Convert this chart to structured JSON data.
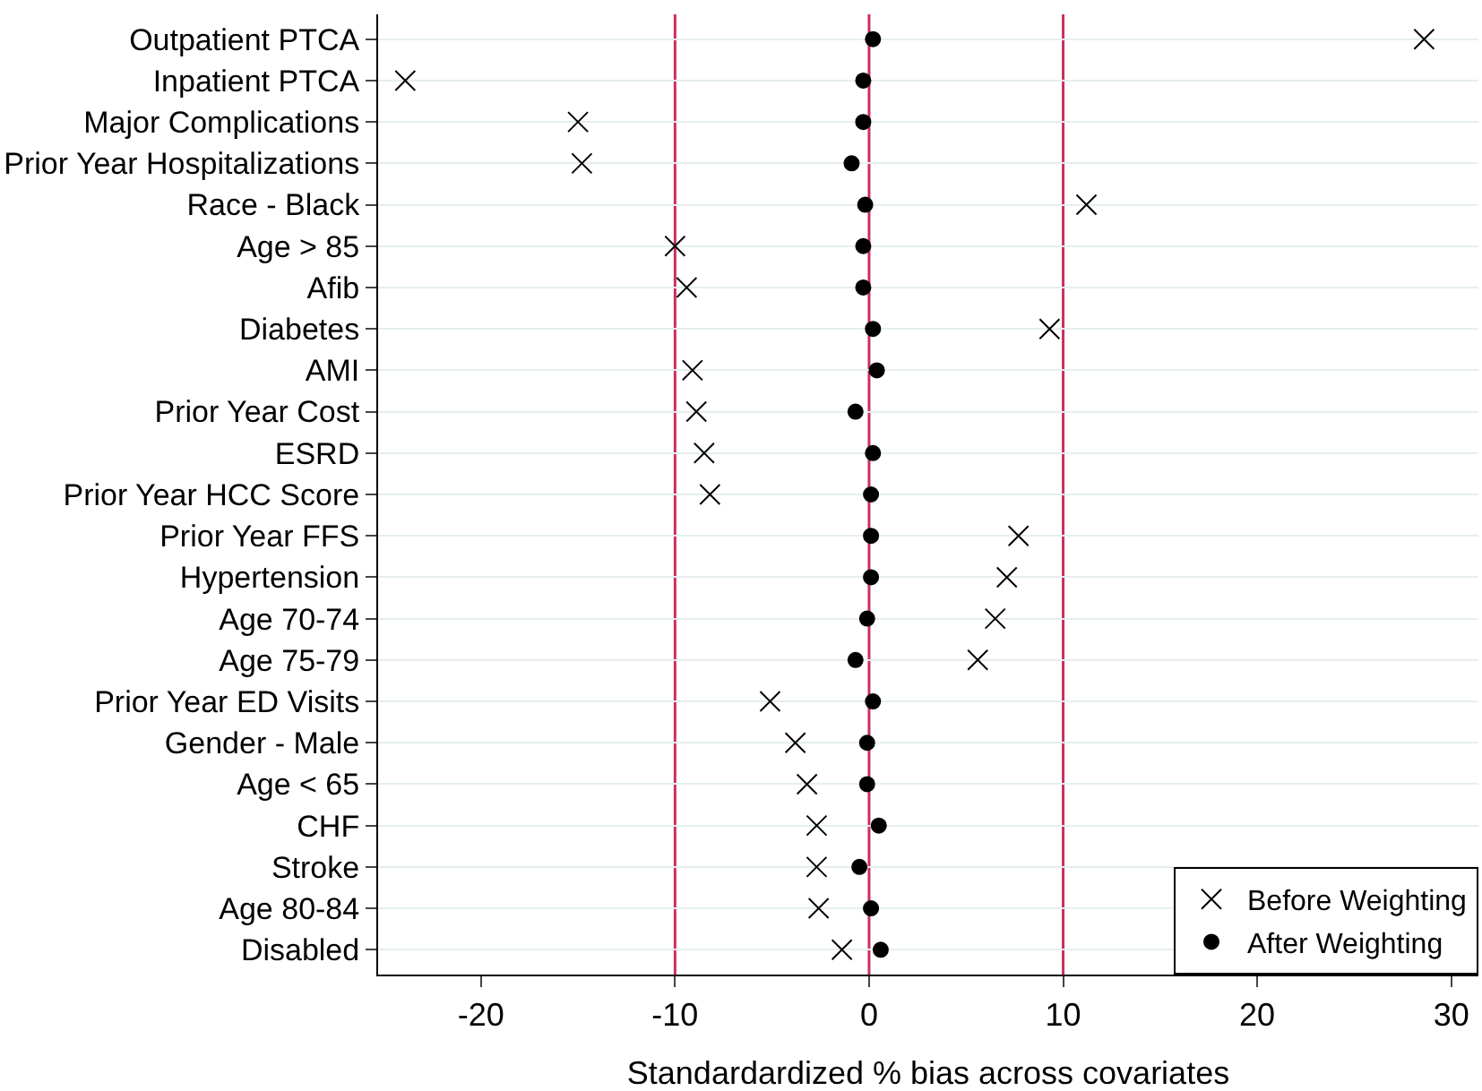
{
  "chart_data": {
    "type": "scatter",
    "orientation": "horizontal",
    "xlabel": "Standardardized % bias across covariates",
    "categories": [
      "Outpatient PTCA",
      "Inpatient PTCA",
      "Major Complications",
      "Prior Year Hospitalizations",
      "Race - Black",
      "Age > 85",
      "Afib",
      "Diabetes",
      "AMI",
      "Prior Year Cost",
      "ESRD",
      "Prior Year HCC Score",
      "Prior Year FFS",
      "Hypertension",
      "Age 70-74",
      "Age 75-79",
      "Prior Year ED Visits",
      "Gender - Male",
      "Age < 65",
      "CHF",
      "Stroke",
      "Age 80-84",
      "Disabled"
    ],
    "series": [
      {
        "name": "Before Weighting",
        "color": "#000000",
        "marker": "cross",
        "values": [
          28.6,
          -23.9,
          -15.0,
          -14.8,
          11.2,
          -10.0,
          -9.4,
          9.3,
          -9.1,
          -8.9,
          -8.5,
          -8.2,
          7.7,
          7.1,
          6.5,
          5.6,
          -5.1,
          -3.8,
          -3.2,
          -2.7,
          -2.7,
          -2.6,
          -1.4
        ]
      },
      {
        "name": "After Weighting",
        "color": "#000000",
        "marker": "circle",
        "values": [
          0.2,
          -0.3,
          -0.3,
          -0.9,
          -0.2,
          -0.3,
          -0.3,
          0.2,
          0.4,
          -0.7,
          0.2,
          0.1,
          0.1,
          0.1,
          -0.1,
          -0.7,
          0.2,
          -0.1,
          -0.1,
          0.5,
          -0.5,
          0.1,
          0.6
        ]
      }
    ],
    "xlim": [
      -25.3,
      31.4
    ],
    "xticks": [
      -20,
      -10,
      0,
      10,
      20,
      30
    ],
    "ref_lines": [
      {
        "axis": "x",
        "value": -10,
        "color": "#c8325a"
      },
      {
        "axis": "x",
        "value": 0,
        "color": "#c8325a"
      },
      {
        "axis": "x",
        "value": 10,
        "color": "#c8325a"
      }
    ],
    "grid": "y",
    "legend": "bottom right"
  }
}
